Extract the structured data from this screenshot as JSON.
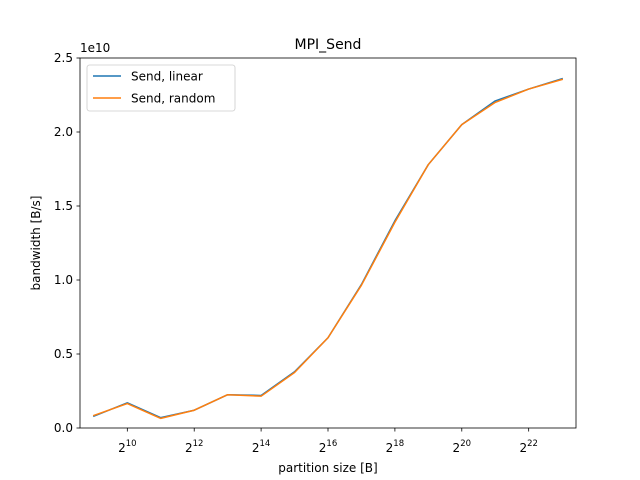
{
  "chart_data": {
    "type": "line",
    "title": "MPI_Send",
    "xlabel": "partition size [B]",
    "ylabel": "bandwidth [B/s]",
    "x_scale": "log2",
    "x": [
      512,
      1024,
      2048,
      4096,
      8192,
      16384,
      32768,
      65536,
      131072,
      262144,
      524288,
      1048576,
      2097152,
      4194304,
      8388608
    ],
    "xlim": [
      384,
      11184811
    ],
    "x_ticks": [
      {
        "value": 1024,
        "base": "2",
        "exp": "10"
      },
      {
        "value": 4096,
        "base": "2",
        "exp": "12"
      },
      {
        "value": 16384,
        "base": "2",
        "exp": "14"
      },
      {
        "value": 65536,
        "base": "2",
        "exp": "16"
      },
      {
        "value": 262144,
        "base": "2",
        "exp": "18"
      },
      {
        "value": 1048576,
        "base": "2",
        "exp": "20"
      },
      {
        "value": 4194304,
        "base": "2",
        "exp": "22"
      }
    ],
    "ylim": [
      0,
      2.5
    ],
    "y_multiplier": "1e10",
    "y_ticks": [
      {
        "value": 0.0,
        "label": "0.0"
      },
      {
        "value": 0.5,
        "label": "0.5"
      },
      {
        "value": 1.0,
        "label": "1.0"
      },
      {
        "value": 1.5,
        "label": "1.5"
      },
      {
        "value": 2.0,
        "label": "2.0"
      },
      {
        "value": 2.5,
        "label": "2.5"
      }
    ],
    "legend_position": "top-left",
    "grid": false,
    "series": [
      {
        "name": "Send, linear",
        "color": "#1f77b4",
        "values": [
          0.08,
          0.17,
          0.07,
          0.12,
          0.225,
          0.22,
          0.38,
          0.61,
          0.97,
          1.4,
          1.78,
          2.05,
          2.21,
          2.29,
          2.36
        ]
      },
      {
        "name": "Send, random",
        "color": "#ff7f0e",
        "values": [
          0.085,
          0.165,
          0.065,
          0.12,
          0.225,
          0.215,
          0.375,
          0.61,
          0.965,
          1.39,
          1.78,
          2.05,
          2.2,
          2.29,
          2.355
        ]
      }
    ]
  }
}
